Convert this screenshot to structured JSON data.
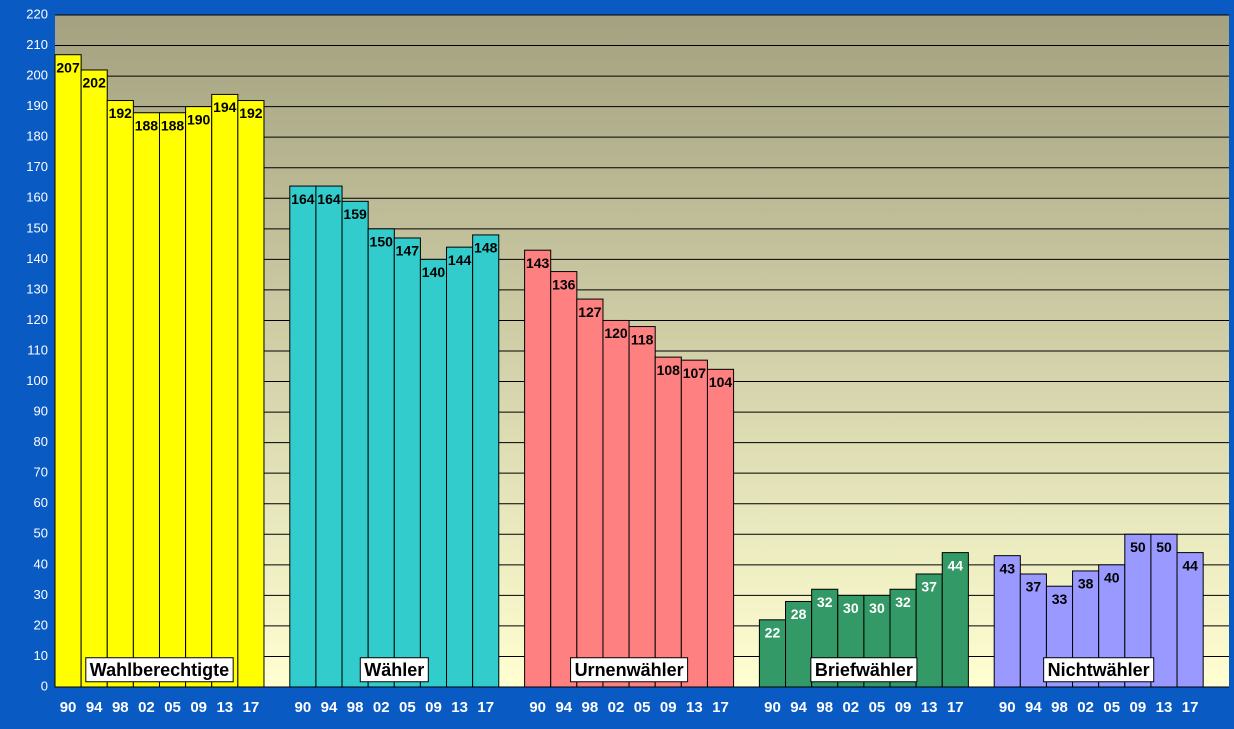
{
  "chart_data": {
    "type": "grouped_bar",
    "categories": [
      "90",
      "94",
      "98",
      "02",
      "05",
      "09",
      "13",
      "17"
    ],
    "series": [
      {
        "name": "Wahlberechtigte",
        "color": "#ffff00",
        "values": [
          207,
          202,
          192,
          188,
          188,
          190,
          194,
          192
        ]
      },
      {
        "name": "Wähler",
        "color": "#33cccc",
        "values": [
          164,
          164,
          159,
          150,
          147,
          140,
          144,
          148
        ]
      },
      {
        "name": "Urnenwähler",
        "color": "#ff8080",
        "values": [
          143,
          136,
          127,
          120,
          118,
          108,
          107,
          104
        ]
      },
      {
        "name": "Briefwähler",
        "color": "#339966",
        "label_color": "#ffffff",
        "values": [
          22,
          28,
          32,
          30,
          30,
          32,
          37,
          44
        ]
      },
      {
        "name": "Nichtwähler",
        "color": "#9999ff",
        "values": [
          43,
          37,
          33,
          38,
          40,
          50,
          50,
          44
        ]
      }
    ],
    "ylim": [
      0,
      220
    ],
    "yticks": [
      0,
      10,
      20,
      30,
      40,
      50,
      60,
      70,
      80,
      90,
      100,
      110,
      120,
      130,
      140,
      150,
      160,
      170,
      180,
      190,
      200,
      210,
      220
    ],
    "grid": true
  }
}
